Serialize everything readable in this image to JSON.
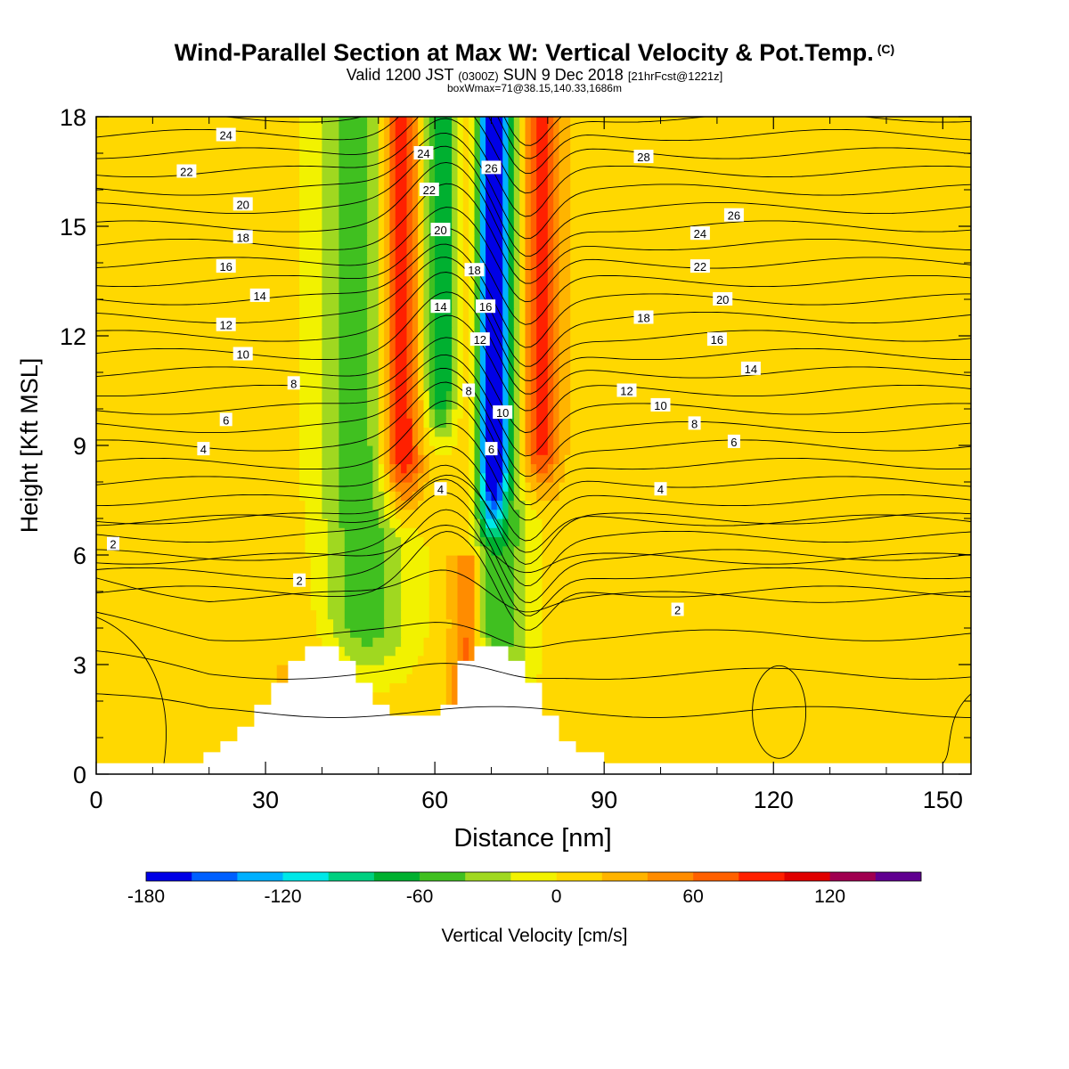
{
  "header": {
    "title": "Wind-Parallel Section at Max W: Vertical Velocity & Pot.Temp.",
    "title_suffix": "(C)",
    "valid_prefix": "Valid 1200 JST",
    "valid_zulu": "(0300Z)",
    "valid_date": "SUN 9 Dec 2018",
    "forecast": "[21hrFcst@1221z]",
    "box_info": "boxWmax=71@38.15,140.33,1686m"
  },
  "chart_data": {
    "type": "heatmap",
    "xlabel": "Distance [nm]",
    "ylabel": "Height [Kft MSL]",
    "xlim": [
      0,
      155
    ],
    "ylim": [
      0,
      18
    ],
    "x_ticks": [
      0,
      30,
      60,
      90,
      120,
      150
    ],
    "y_ticks": [
      0,
      3,
      6,
      9,
      12,
      15,
      18
    ],
    "colorbar": {
      "label": "Vertical Velocity [cm/s]",
      "tick_values": [
        -180,
        -120,
        -60,
        0,
        60,
        120
      ],
      "tick_labels": [
        "-180",
        "-120",
        "-60",
        "0",
        "60",
        "120"
      ],
      "range": [
        -180,
        160
      ],
      "colors": [
        "#0000e6",
        "#0060ff",
        "#00b0ff",
        "#00e8e8",
        "#00d080",
        "#00b030",
        "#40c020",
        "#a0d820",
        "#f2f200",
        "#ffd800",
        "#ffb400",
        "#ff8c00",
        "#ff6000",
        "#ff2000",
        "#e00000",
        "#a00050",
        "#600090"
      ]
    },
    "velocity_bands": [
      {
        "name": "green-downdraft-west",
        "x": [
          36,
          56
        ],
        "value": -60
      },
      {
        "name": "red-updraft",
        "x": [
          50,
          58
        ],
        "value": 100
      },
      {
        "name": "blue-downdraft-core",
        "x": [
          67,
          73
        ],
        "value": -170
      },
      {
        "name": "red-updraft-east",
        "x": [
          76,
          82
        ],
        "value": 90
      }
    ],
    "contour_labels": [
      {
        "text": "24",
        "x": 23,
        "y": 17.5
      },
      {
        "text": "22",
        "x": 16,
        "y": 16.5
      },
      {
        "text": "20",
        "x": 26,
        "y": 15.6
      },
      {
        "text": "18",
        "x": 26,
        "y": 14.7
      },
      {
        "text": "16",
        "x": 23,
        "y": 13.9
      },
      {
        "text": "14",
        "x": 29,
        "y": 13.1
      },
      {
        "text": "12",
        "x": 23,
        "y": 12.3
      },
      {
        "text": "10",
        "x": 26,
        "y": 11.5
      },
      {
        "text": "8",
        "x": 35,
        "y": 10.7
      },
      {
        "text": "6",
        "x": 23,
        "y": 9.7
      },
      {
        "text": "4",
        "x": 19,
        "y": 8.9
      },
      {
        "text": "2",
        "x": 3,
        "y": 6.3
      },
      {
        "text": "2",
        "x": 36,
        "y": 5.3
      },
      {
        "text": "24",
        "x": 58,
        "y": 17.0
      },
      {
        "text": "22",
        "x": 59,
        "y": 16.0
      },
      {
        "text": "20",
        "x": 61,
        "y": 14.9
      },
      {
        "text": "18",
        "x": 67,
        "y": 13.8
      },
      {
        "text": "16",
        "x": 69,
        "y": 12.8
      },
      {
        "text": "14",
        "x": 61,
        "y": 12.8
      },
      {
        "text": "12",
        "x": 68,
        "y": 11.9
      },
      {
        "text": "8",
        "x": 66,
        "y": 10.5
      },
      {
        "text": "10",
        "x": 72,
        "y": 9.9
      },
      {
        "text": "6",
        "x": 70,
        "y": 8.9
      },
      {
        "text": "4",
        "x": 61,
        "y": 7.8
      },
      {
        "text": "26",
        "x": 70,
        "y": 16.6
      },
      {
        "text": "28",
        "x": 97,
        "y": 16.9
      },
      {
        "text": "26",
        "x": 113,
        "y": 15.3
      },
      {
        "text": "24",
        "x": 107,
        "y": 14.8
      },
      {
        "text": "22",
        "x": 107,
        "y": 13.9
      },
      {
        "text": "20",
        "x": 111,
        "y": 13.0
      },
      {
        "text": "18",
        "x": 97,
        "y": 12.5
      },
      {
        "text": "16",
        "x": 110,
        "y": 11.9
      },
      {
        "text": "14",
        "x": 116,
        "y": 11.1
      },
      {
        "text": "12",
        "x": 94,
        "y": 10.5
      },
      {
        "text": "10",
        "x": 100,
        "y": 10.1
      },
      {
        "text": "8",
        "x": 106,
        "y": 9.6
      },
      {
        "text": "6",
        "x": 113,
        "y": 9.1
      },
      {
        "text": "4",
        "x": 100,
        "y": 7.8
      },
      {
        "text": "2",
        "x": 103,
        "y": 4.5
      }
    ]
  }
}
